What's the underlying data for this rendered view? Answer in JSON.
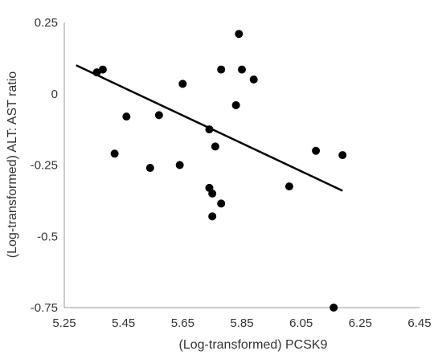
{
  "chart_data": {
    "type": "scatter",
    "xlabel": "(Log-transformed) PCSK9",
    "ylabel": "(Log-transformed) ALT: AST ratio",
    "xlim": [
      5.25,
      6.45
    ],
    "ylim": [
      -0.75,
      0.25
    ],
    "x_ticks": [
      "5.25",
      "5.45",
      "5.65",
      "5.85",
      "6.05",
      "6.25",
      "6.45"
    ],
    "y_ticks": [
      "0.25",
      "0",
      "-0.25",
      "-0.5",
      "-0.75"
    ],
    "grid": false,
    "legend": "none",
    "marker_color": "#000000",
    "line_color": "#000000",
    "series": [
      {
        "points": [
          {
            "x": 5.36,
            "y": 0.075
          },
          {
            "x": 5.38,
            "y": 0.085
          },
          {
            "x": 5.42,
            "y": -0.21
          },
          {
            "x": 5.46,
            "y": -0.08
          },
          {
            "x": 5.54,
            "y": -0.26
          },
          {
            "x": 5.57,
            "y": -0.075
          },
          {
            "x": 5.64,
            "y": -0.25
          },
          {
            "x": 5.65,
            "y": 0.035
          },
          {
            "x": 5.74,
            "y": -0.125
          },
          {
            "x": 5.74,
            "y": -0.33
          },
          {
            "x": 5.75,
            "y": -0.35
          },
          {
            "x": 5.75,
            "y": -0.43
          },
          {
            "x": 5.76,
            "y": -0.185
          },
          {
            "x": 5.78,
            "y": 0.085
          },
          {
            "x": 5.78,
            "y": -0.385
          },
          {
            "x": 5.83,
            "y": -0.04
          },
          {
            "x": 5.84,
            "y": 0.21
          },
          {
            "x": 5.85,
            "y": 0.085
          },
          {
            "x": 5.89,
            "y": 0.05
          },
          {
            "x": 6.01,
            "y": -0.325
          },
          {
            "x": 6.1,
            "y": -0.2
          },
          {
            "x": 6.16,
            "y": -0.75
          },
          {
            "x": 6.19,
            "y": -0.215
          }
        ]
      }
    ],
    "trendline": {
      "x": [
        5.29,
        6.19
      ],
      "y": [
        0.1,
        -0.34
      ]
    }
  }
}
